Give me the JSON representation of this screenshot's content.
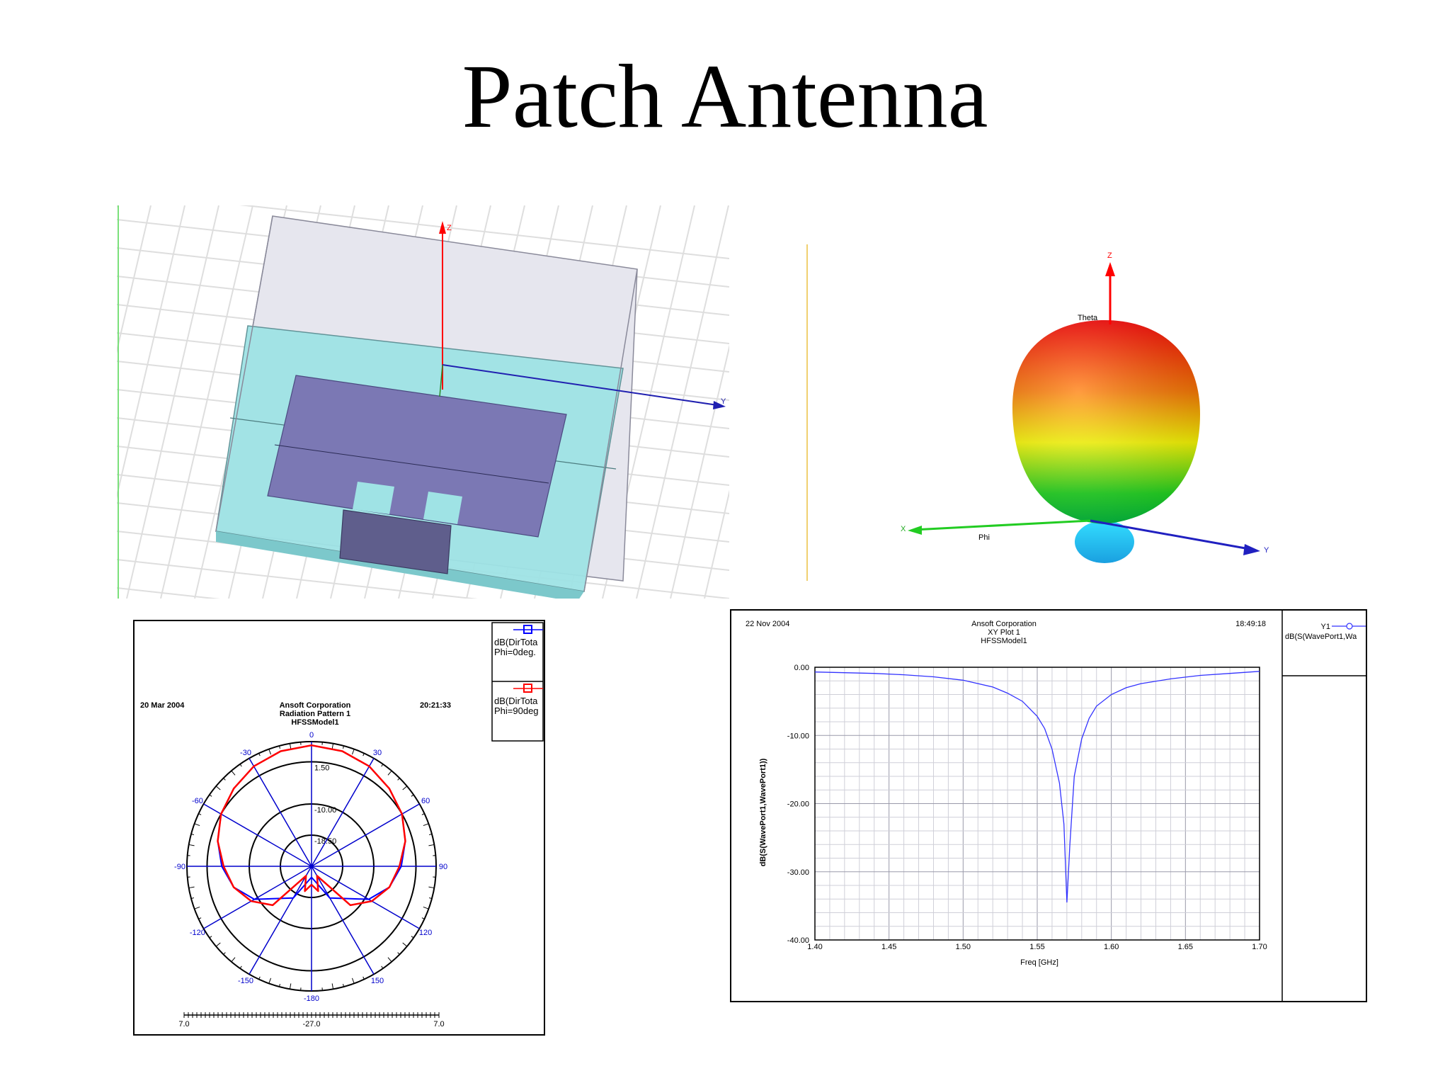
{
  "slide": {
    "title": "Patch Antenna"
  },
  "model_view": {
    "axis_z": "Z",
    "axis_y": "Y",
    "colors": {
      "substrate": "#9fe3e5",
      "patch": "#7b78b4",
      "feed": "#5f5e8c",
      "box": "#d9d9e3",
      "grid": "#dedede"
    }
  },
  "pattern_3d": {
    "axis_z": "Z",
    "axis_y": "Y",
    "axis_x": "X",
    "theta_label": "Theta",
    "phi_label": "Phi",
    "colors": {
      "top": "#ff0000",
      "mid": "#ffff00",
      "low": "#00e000",
      "back": "#33ccff"
    }
  },
  "chart_data": [
    {
      "type": "polar",
      "header": {
        "date": "20 Mar 2004",
        "company": "Ansoft Corporation",
        "plot": "Radiation Pattern 1",
        "model": "HFSSModel1",
        "time": "20:21:33"
      },
      "legend": [
        {
          "line1": "dB(DirTota",
          "line2": "Phi=0deg.",
          "color": "#0000ff"
        },
        {
          "line1": "dB(DirTota",
          "line2": "Phi=90deg",
          "color": "#ff0000"
        }
      ],
      "radial_rings": [
        "1.50",
        "-10.00",
        "-18.50"
      ],
      "radial_range": [
        -27.0,
        7.0
      ],
      "angle_labels": [
        {
          "angle": 0,
          "label": "0"
        },
        {
          "angle": 30,
          "label": "30"
        },
        {
          "angle": 60,
          "label": "60"
        },
        {
          "angle": 90,
          "label": "90"
        },
        {
          "angle": 120,
          "label": "120"
        },
        {
          "angle": 150,
          "label": "150"
        },
        {
          "angle": 180,
          "label": "-180"
        },
        {
          "angle": -150,
          "label": "-150"
        },
        {
          "angle": -120,
          "label": "-120"
        },
        {
          "angle": -90,
          "label": "-90"
        },
        {
          "angle": -60,
          "label": "-60"
        },
        {
          "angle": -30,
          "label": "-30"
        }
      ],
      "scale_labels": {
        "left": "7.0",
        "center": "-27.0",
        "right": "7.0"
      },
      "series": [
        {
          "name": "dB(DirTota Phi=0deg.",
          "color": "#0000ff",
          "theta": [
            -180,
            -150,
            -120,
            -105,
            -90,
            -75,
            -60,
            -45,
            -30,
            -15,
            0,
            15,
            30,
            45,
            60,
            75,
            90,
            105,
            120,
            150,
            180
          ],
          "values": [
            -24,
            -17,
            -9,
            -5,
            -2.5,
            -0.5,
            1.5,
            3,
            4.5,
            5.5,
            6,
            5.5,
            4.5,
            3,
            1.5,
            -0.5,
            -2.5,
            -5,
            -9,
            -17,
            -24
          ]
        },
        {
          "name": "dB(DirTota Phi=90deg",
          "color": "#ff0000",
          "theta": [
            -180,
            -165,
            -150,
            -135,
            -120,
            -105,
            -90,
            -75,
            -60,
            -45,
            -30,
            -15,
            0,
            15,
            30,
            45,
            60,
            75,
            90,
            105,
            120,
            135,
            150,
            165,
            180
          ],
          "values": [
            -22,
            -20,
            -24,
            -12,
            -8,
            -5,
            -3,
            -0.5,
            1.5,
            3,
            4.5,
            5.5,
            6,
            5.5,
            4.5,
            3,
            1.5,
            -0.5,
            -3,
            -5,
            -8,
            -12,
            -24,
            -20,
            -22
          ]
        }
      ]
    },
    {
      "type": "line",
      "header": {
        "date": "22 Nov 2004",
        "company": "Ansoft Corporation",
        "plot": "XY Plot 1",
        "model": "HFSSModel1",
        "time": "18:49:18"
      },
      "legend": {
        "name": "Y1",
        "expr": "dB(S(WavePort1,Wa"
      },
      "xlabel": "Freq [GHz]",
      "ylabel": "dB(S(WavePort1,WavePort1))",
      "xlim": [
        1.4,
        1.7
      ],
      "ylim": [
        -40.0,
        0.0
      ],
      "xticks": [
        "1.40",
        "1.45",
        "1.50",
        "1.55",
        "1.60",
        "1.65",
        "1.70"
      ],
      "yticks": [
        "0.00",
        "-10.00",
        "-20.00",
        "-30.00",
        "-40.00"
      ],
      "series": [
        {
          "name": "Y1",
          "color": "#3333ff",
          "x": [
            1.4,
            1.42,
            1.44,
            1.46,
            1.48,
            1.5,
            1.52,
            1.53,
            1.54,
            1.55,
            1.555,
            1.56,
            1.565,
            1.568,
            1.57,
            1.572,
            1.575,
            1.58,
            1.585,
            1.59,
            1.6,
            1.61,
            1.62,
            1.64,
            1.66,
            1.68,
            1.7
          ],
          "y": [
            -0.7,
            -0.8,
            -0.9,
            -1.1,
            -1.4,
            -1.9,
            -2.9,
            -3.8,
            -5.0,
            -7.2,
            -9.0,
            -12.0,
            -17.0,
            -23.0,
            -34.5,
            -26.0,
            -16.0,
            -10.5,
            -7.5,
            -5.7,
            -4.0,
            -3.0,
            -2.4,
            -1.7,
            -1.2,
            -0.9,
            -0.6
          ]
        }
      ]
    }
  ]
}
